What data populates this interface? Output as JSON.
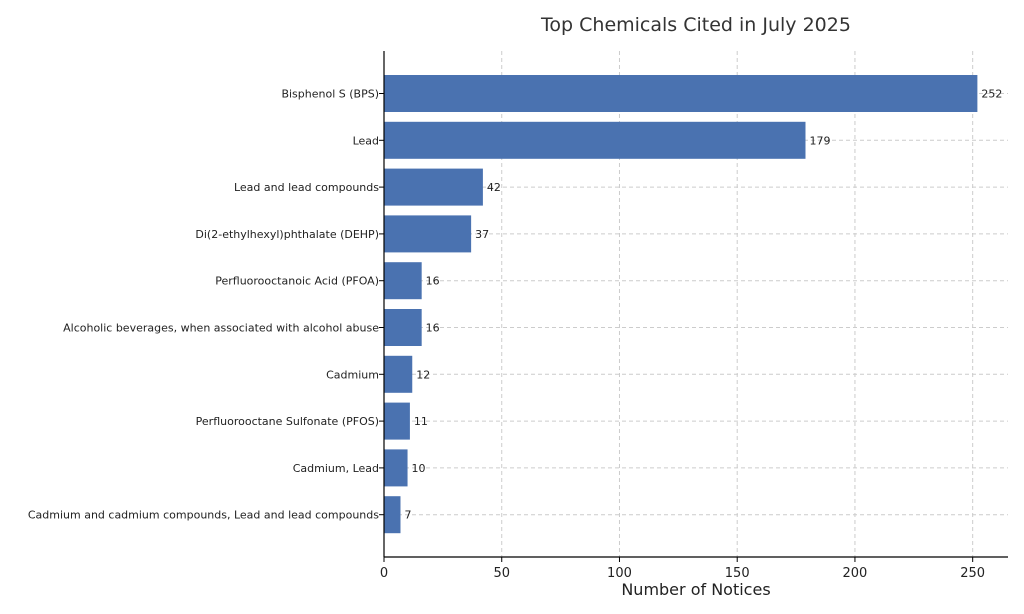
{
  "chart_data": {
    "type": "bar",
    "orientation": "horizontal",
    "title": "Top Chemicals Cited in July 2025",
    "xlabel": "Number of Notices",
    "ylabel": "",
    "categories": [
      "Bisphenol S (BPS)",
      "Lead",
      "Lead and lead compounds",
      "Di(2-ethylhexyl)phthalate (DEHP)",
      "Perfluorooctanoic Acid (PFOA)",
      "Alcoholic beverages, when associated with alcohol abuse",
      "Cadmium",
      "Perfluorooctane Sulfonate (PFOS)",
      "Cadmium, Lead",
      "Cadmium and cadmium compounds, Lead and lead compounds"
    ],
    "values": [
      252,
      179,
      42,
      37,
      16,
      16,
      12,
      11,
      10,
      7
    ],
    "xlim": [
      0,
      265
    ],
    "xticks": [
      0,
      50,
      100,
      150,
      200,
      250
    ],
    "grid": true,
    "bar_color": "#4a72b0",
    "data_labels": true
  }
}
